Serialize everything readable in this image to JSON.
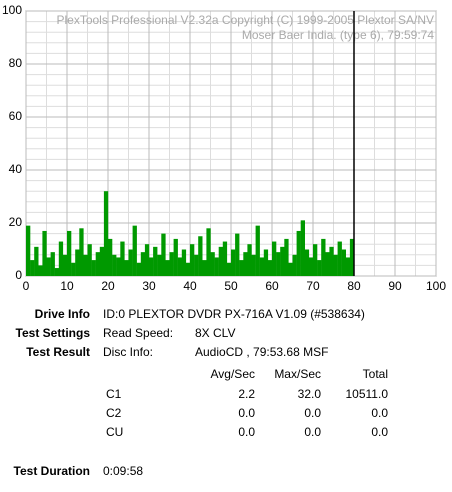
{
  "chart_data": {
    "type": "bar",
    "watermark": [
      "PlexTools Professional V2.32a Copyright (C) 1999-2005 Plextor SA/NV",
      "Moser Baer India. (type 6), 79:59:74"
    ],
    "x": [
      0,
      1,
      2,
      3,
      4,
      5,
      6,
      7,
      8,
      9,
      10,
      11,
      12,
      13,
      14,
      15,
      16,
      17,
      18,
      19,
      20,
      21,
      22,
      23,
      24,
      25,
      26,
      27,
      28,
      29,
      30,
      31,
      32,
      33,
      34,
      35,
      36,
      37,
      38,
      39,
      40,
      41,
      42,
      43,
      44,
      45,
      46,
      47,
      48,
      49,
      50,
      51,
      52,
      53,
      54,
      55,
      56,
      57,
      58,
      59,
      60,
      61,
      62,
      63,
      64,
      65,
      66,
      67,
      68,
      69,
      70,
      71,
      72,
      73,
      74,
      75,
      76,
      77,
      78,
      79
    ],
    "values": [
      19,
      6,
      11,
      4,
      17,
      7,
      9,
      3,
      13,
      8,
      17,
      5,
      10,
      18,
      8,
      12,
      6,
      9,
      11,
      32,
      14,
      8,
      7,
      13,
      6,
      10,
      19,
      5,
      9,
      12,
      7,
      11,
      8,
      16,
      6,
      9,
      14,
      7,
      10,
      5,
      12,
      8,
      15,
      6,
      18,
      9,
      7,
      11,
      13,
      5,
      10,
      16,
      6,
      9,
      12,
      8,
      19,
      7,
      10,
      6,
      13,
      9,
      11,
      14,
      5,
      8,
      17,
      21,
      10,
      7,
      12,
      6,
      14,
      9,
      11,
      8,
      13,
      10,
      7,
      14
    ],
    "color": "#009900",
    "marker_x": 80,
    "xlim": [
      0,
      100
    ],
    "ylim": [
      0,
      100
    ],
    "xticks": [
      0,
      10,
      20,
      30,
      40,
      50,
      60,
      70,
      80,
      90,
      100
    ],
    "yticks": [
      0,
      20,
      40,
      60,
      80,
      100
    ],
    "xminorticks": [
      5,
      15,
      25,
      35,
      45,
      55,
      65,
      75,
      85,
      95
    ],
    "yminorticks": [
      4,
      8,
      12,
      16,
      24,
      28,
      32,
      36,
      44,
      48,
      52,
      56,
      64,
      68,
      72,
      76,
      84,
      88,
      92,
      96
    ],
    "grid": true
  },
  "info": {
    "drive_label": "Drive Info",
    "drive_value": "ID:0 PLEXTOR DVDR PX-716A V1.09 (#538634)",
    "settings_label": "Test Settings",
    "settings_key": "Read Speed:",
    "settings_value": "8X CLV",
    "result_label": "Test Result",
    "result_key": "Disc Info:",
    "result_value": "AudioCD , 79:53.68 MSF",
    "table": {
      "header": [
        "Avg/Sec",
        "Max/Sec",
        "Total"
      ],
      "rows": [
        [
          "C1",
          "2.2",
          "32.0",
          "10511.0"
        ],
        [
          "C2",
          "0.0",
          "0.0",
          "0.0"
        ],
        [
          "CU",
          "0.0",
          "0.0",
          "0.0"
        ]
      ]
    },
    "duration_label": "Test Duration",
    "duration_value": "0:09:58"
  }
}
